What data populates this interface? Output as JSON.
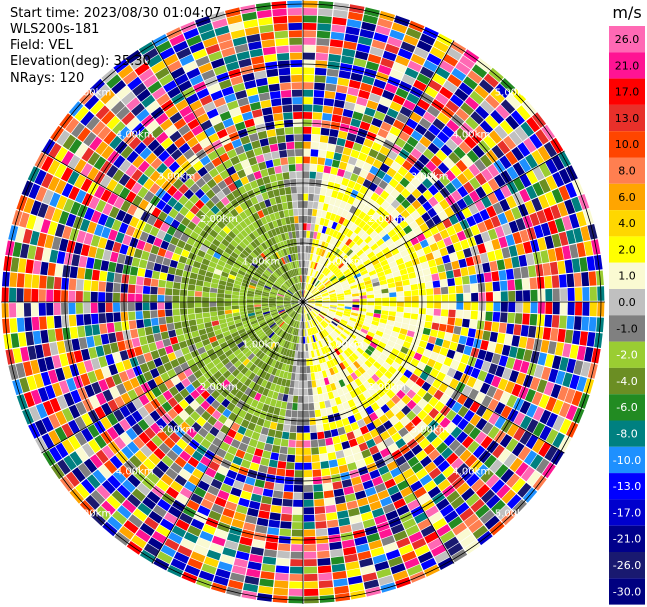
{
  "info": {
    "start_time": "Start time: 2023/08/30 01:04:07",
    "instrument": "WLS200s-181",
    "field": "Field: VEL",
    "elevation": "Elevation(deg): 35.30",
    "nrays": "NRays: 120"
  },
  "range_ring_labels": [
    "1.00km",
    "2.00km",
    "3.00km",
    "4.00km",
    "5.00km"
  ],
  "colorbar": {
    "unit": "m/s",
    "tick_labels": [
      "26.0",
      "21.0",
      "17.0",
      "13.0",
      "10.0",
      "8.0",
      "6.0",
      "4.0",
      "2.0",
      "1.0",
      "0.0",
      "-1.0",
      "-2.0",
      "-4.0",
      "-6.0",
      "-8.0",
      "-10.0",
      "-13.0",
      "-17.0",
      "-21.0",
      "-26.0",
      "-30.0"
    ],
    "colors": [
      "#ff69b4",
      "#ff1493",
      "#ff0000",
      "#e8302a",
      "#ff4500",
      "#ff7f50",
      "#ffa500",
      "#ffd700",
      "#ffff00",
      "#fafad2",
      "#c0c0c0",
      "#808080",
      "#9acd32",
      "#6b8e23",
      "#228b22",
      "#008080",
      "#1e90ff",
      "#0000ff",
      "#0000cd",
      "#00008b",
      "#191970",
      "#000080"
    ]
  }
}
